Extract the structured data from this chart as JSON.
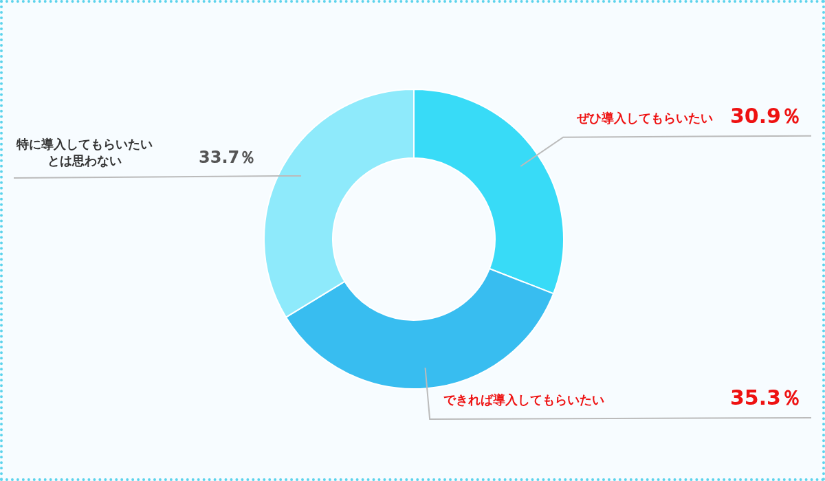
{
  "chart_data": {
    "type": "donut",
    "categories": [
      "ぜひ導入してもらいたい",
      "できれば導入してもらいたい",
      "特に導入してもらいたいとは思わない"
    ],
    "values": [
      30.9,
      35.3,
      33.7
    ],
    "colors": [
      "#38dbf7",
      "#38bdf0",
      "#8eeafb"
    ],
    "value_labels": [
      "30.9％",
      "35.3％",
      "33.7％"
    ]
  }
}
